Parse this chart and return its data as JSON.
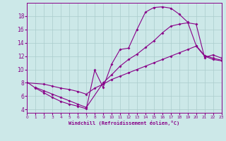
{
  "background_color": "#cce8e8",
  "line_color": "#880088",
  "grid_color": "#aacccc",
  "xlabel": "Windchill (Refroidissement éolien,°C)",
  "xlim": [
    0,
    23
  ],
  "ylim": [
    3.5,
    20
  ],
  "yticks": [
    4,
    6,
    8,
    10,
    12,
    14,
    16,
    18
  ],
  "xticks": [
    0,
    1,
    2,
    3,
    4,
    5,
    6,
    7,
    8,
    9,
    10,
    11,
    12,
    13,
    14,
    15,
    16,
    17,
    18,
    19,
    20,
    21,
    22,
    23
  ],
  "line1_x": [
    0,
    1,
    2,
    3,
    4,
    5,
    6,
    7,
    8,
    9,
    10,
    11,
    12,
    13,
    14,
    15,
    16,
    17,
    18,
    19,
    20,
    21,
    22,
    23
  ],
  "line1_y": [
    8.1,
    7.2,
    6.5,
    5.8,
    5.2,
    4.8,
    4.5,
    4.1,
    9.9,
    7.3,
    10.8,
    13.0,
    13.2,
    16.0,
    18.6,
    19.3,
    19.4,
    19.2,
    18.3,
    17.1,
    13.6,
    12.1,
    11.7,
    11.4
  ],
  "line2_x": [
    1,
    2,
    3,
    4,
    5,
    6,
    7,
    9,
    10,
    11,
    12,
    13,
    14,
    15,
    16,
    17,
    18,
    19,
    20,
    21,
    22,
    23
  ],
  "line2_y": [
    7.3,
    6.8,
    6.3,
    5.8,
    5.3,
    4.8,
    4.3,
    8.0,
    9.2,
    10.5,
    11.5,
    12.3,
    13.3,
    14.3,
    15.5,
    16.5,
    16.8,
    17.0,
    16.8,
    11.8,
    12.2,
    11.7
  ],
  "line3_x": [
    0,
    2,
    3,
    4,
    5,
    6,
    7,
    8,
    9,
    10,
    11,
    12,
    13,
    14,
    15,
    16,
    17,
    18,
    19,
    20,
    21,
    22,
    23
  ],
  "line3_y": [
    8.0,
    7.8,
    7.5,
    7.2,
    7.0,
    6.7,
    6.3,
    7.2,
    7.8,
    8.5,
    9.0,
    9.5,
    10.0,
    10.5,
    11.0,
    11.5,
    12.0,
    12.5,
    13.0,
    13.5,
    12.0,
    11.5,
    11.3
  ]
}
